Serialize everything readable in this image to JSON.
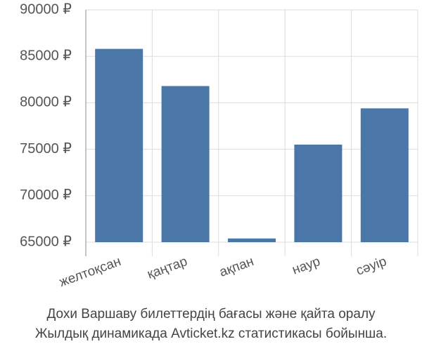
{
  "chart_data": {
    "type": "bar",
    "categories": [
      "желтоқсан",
      "қаңтар",
      "ақпан",
      "наур",
      "сәуір"
    ],
    "values": [
      85800,
      81800,
      65400,
      75500,
      79400
    ],
    "color": "#4a76a8",
    "ylim": [
      65000,
      90000
    ],
    "yticks": [
      {
        "value": 65000,
        "label": "65000 ₽"
      },
      {
        "value": 70000,
        "label": "70000 ₽"
      },
      {
        "value": 75000,
        "label": "75000 ₽"
      },
      {
        "value": 80000,
        "label": "80000 ₽"
      },
      {
        "value": 85000,
        "label": "85000 ₽"
      },
      {
        "value": 90000,
        "label": "90000 ₽"
      }
    ],
    "grid": true,
    "caption": [
      "Дохи Варшаву билеттердің бағасы және қайта оралу",
      "Жылдық динамикада Avticket.kz статистикасы бойынша."
    ]
  }
}
